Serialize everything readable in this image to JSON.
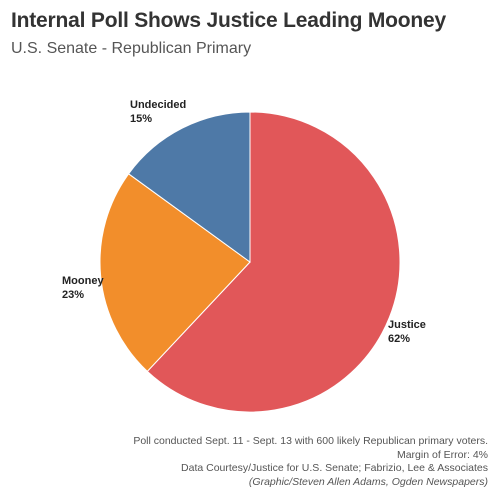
{
  "title": "Internal Poll Shows Justice Leading Mooney",
  "subtitle": "U.S. Senate - Republican Primary",
  "colors": {
    "justice": "#e15759",
    "mooney": "#f28e2b",
    "undecided": "#4e79a7"
  },
  "chart_data": {
    "type": "pie",
    "title": "Internal Poll Shows Justice Leading Mooney",
    "subtitle": "U.S. Senate - Republican Primary",
    "slices": [
      {
        "label": "Justice",
        "value": 62,
        "value_label": "62%",
        "color": "#e15759"
      },
      {
        "label": "Mooney",
        "value": 23,
        "value_label": "23%",
        "color": "#f28e2b"
      },
      {
        "label": "Undecided",
        "value": 15,
        "value_label": "15%",
        "color": "#4e79a7"
      }
    ],
    "start_angle": "12 o'clock",
    "direction": "clockwise",
    "legend": "none (direct labels)"
  },
  "footer": {
    "line1": "Poll conducted Sept. 11 - Sept. 13 with 600 likely Republican primary voters.",
    "line2": "Margin of Error: 4%",
    "line3": "Data Courtesy/Justice for U.S. Senate; Fabrizio, Lee & Associates",
    "credit": "(Graphic/Steven Allen Adams, Ogden Newspapers)"
  }
}
